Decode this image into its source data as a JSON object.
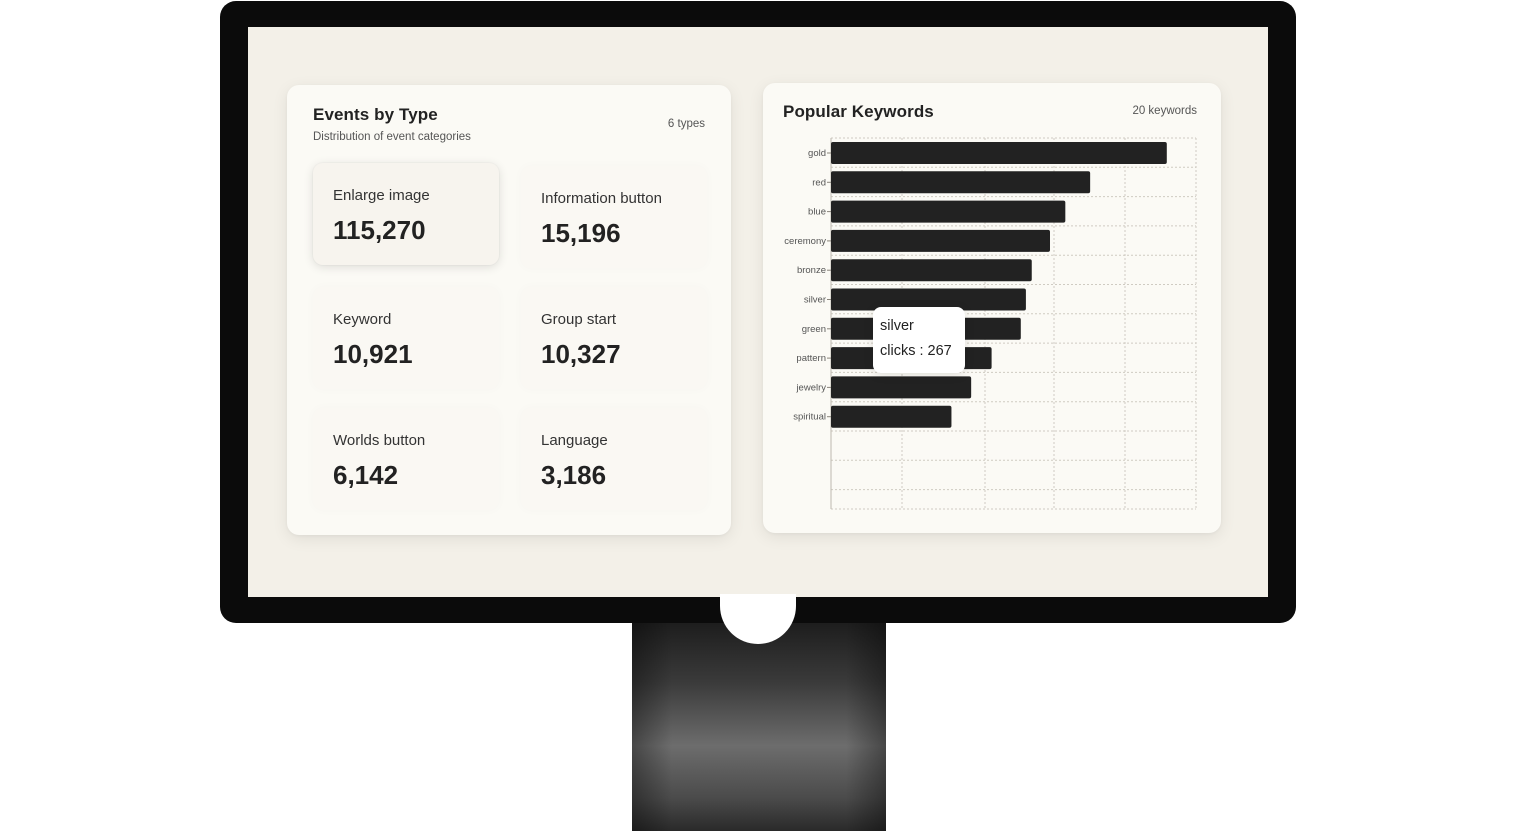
{
  "events_card": {
    "title": "Events by Type",
    "subtitle": "Distribution of event categories",
    "count_label": "6 types",
    "tiles": [
      {
        "label": "Enlarge image",
        "value": "115,270"
      },
      {
        "label": "Information button",
        "value": "15,196"
      },
      {
        "label": "Keyword",
        "value": "10,921"
      },
      {
        "label": "Group start",
        "value": "10,327"
      },
      {
        "label": "Worlds button",
        "value": "6,142"
      },
      {
        "label": "Language",
        "value": "3,186"
      }
    ]
  },
  "keywords_card": {
    "title": "Popular Keywords",
    "count_label": "20 keywords",
    "tooltip": {
      "name": "silver",
      "value_text": "clicks : 267"
    }
  },
  "colors": {
    "bar": "#222222",
    "card": "#fbfaf5",
    "screen": "#f3f0e8"
  },
  "chart_data": {
    "type": "bar",
    "orientation": "horizontal",
    "categories": [
      "gold",
      "red",
      "blue",
      "ceremony",
      "bronze",
      "silver",
      "green",
      "pattern",
      "jewelry",
      "spiritual"
    ],
    "series": [
      {
        "values": [
          460,
          355,
          321,
          300,
          275,
          267,
          260,
          220,
          192,
          165
        ]
      }
    ],
    "xlim": [
      0,
      500
    ],
    "grid": true,
    "legend": "none",
    "title": "Popular Keywords"
  }
}
